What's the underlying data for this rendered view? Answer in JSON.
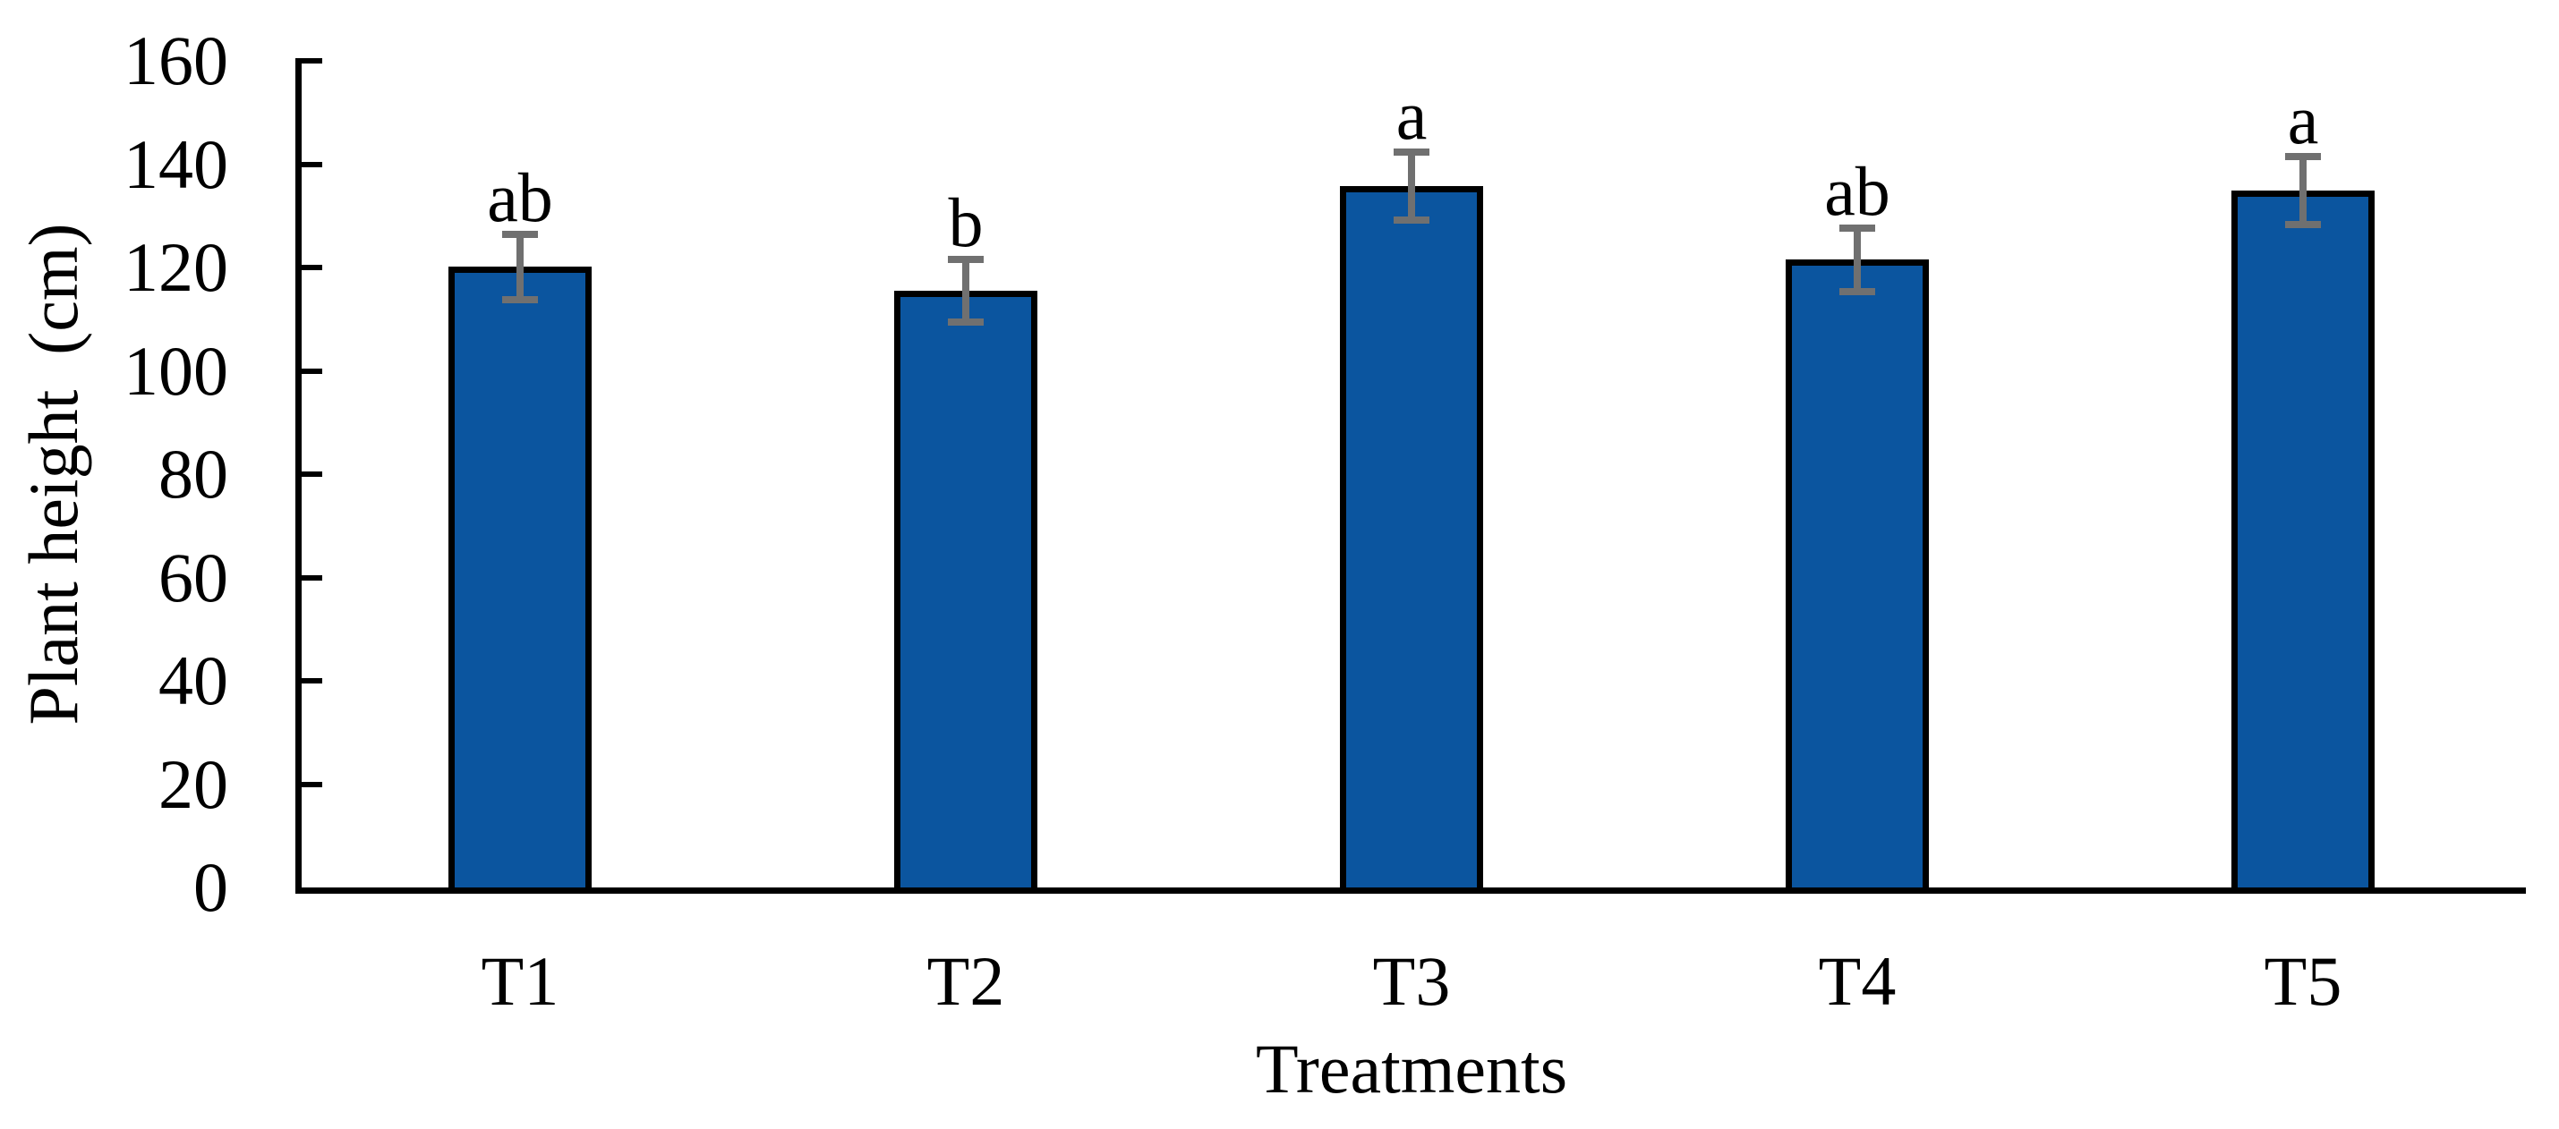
{
  "chart_data": {
    "type": "bar",
    "title": "",
    "categories": [
      "T1",
      "T2",
      "T3",
      "T4",
      "T5"
    ],
    "values": [
      120.1,
      115.5,
      135.8,
      121.5,
      134.9
    ],
    "errors": [
      6.3,
      6.0,
      6.6,
      6.2,
      6.6
    ],
    "sig_letters": [
      "ab",
      "b",
      "a",
      "ab",
      "a"
    ],
    "xlabel": "Treatments",
    "ylabel": "Plant height  (cm)",
    "ylim": [
      0,
      160
    ],
    "ytick_step": 20,
    "grid": false,
    "legend": "none",
    "tick_style": "inside",
    "bar_color": "#0B559F",
    "bar_border_color": "#000000",
    "error_bar_color": "#707070",
    "axis_color": "#000000"
  }
}
